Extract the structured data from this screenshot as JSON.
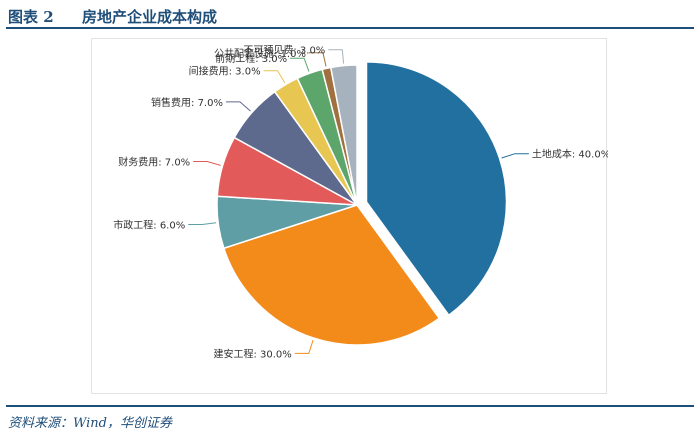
{
  "header": {
    "figure_number": "图表 2",
    "title": "房地产企业成本构成"
  },
  "footer": {
    "source": "资料来源：Wind，华创证券"
  },
  "chart_data": {
    "type": "pie",
    "title": "房地产企业成本构成",
    "start_angle_deg": 0,
    "direction": "clockwise",
    "exploded": "土地成本",
    "slices": [
      {
        "label": "土地成本",
        "value": 40.0,
        "display": "土地成本: 40.0%",
        "color": "#21709f"
      },
      {
        "label": "建安工程",
        "value": 30.0,
        "display": "建安工程: 30.0%",
        "color": "#f38b1b"
      },
      {
        "label": "市政工程",
        "value": 6.0,
        "display": "市政工程: 6.0%",
        "color": "#5f9ea4"
      },
      {
        "label": "财务费用",
        "value": 7.0,
        "display": "财务费用: 7.0%",
        "color": "#e25a5a"
      },
      {
        "label": "销售费用",
        "value": 7.0,
        "display": "销售费用: 7.0%",
        "color": "#5d6a8e"
      },
      {
        "label": "间接费用",
        "value": 3.0,
        "display": "间接费用: 3.0%",
        "color": "#e7c652"
      },
      {
        "label": "前期工程",
        "value": 3.0,
        "display": "前期工程: 3.0%",
        "color": "#5ca66c"
      },
      {
        "label": "公共配套设施",
        "value": 1.0,
        "display": "公共配套设施: 1.0%",
        "color": "#a0703e"
      },
      {
        "label": "不可预见费",
        "value": 3.0,
        "display": "不可预见费: 3.0%",
        "color": "#a7b2bf"
      }
    ]
  }
}
